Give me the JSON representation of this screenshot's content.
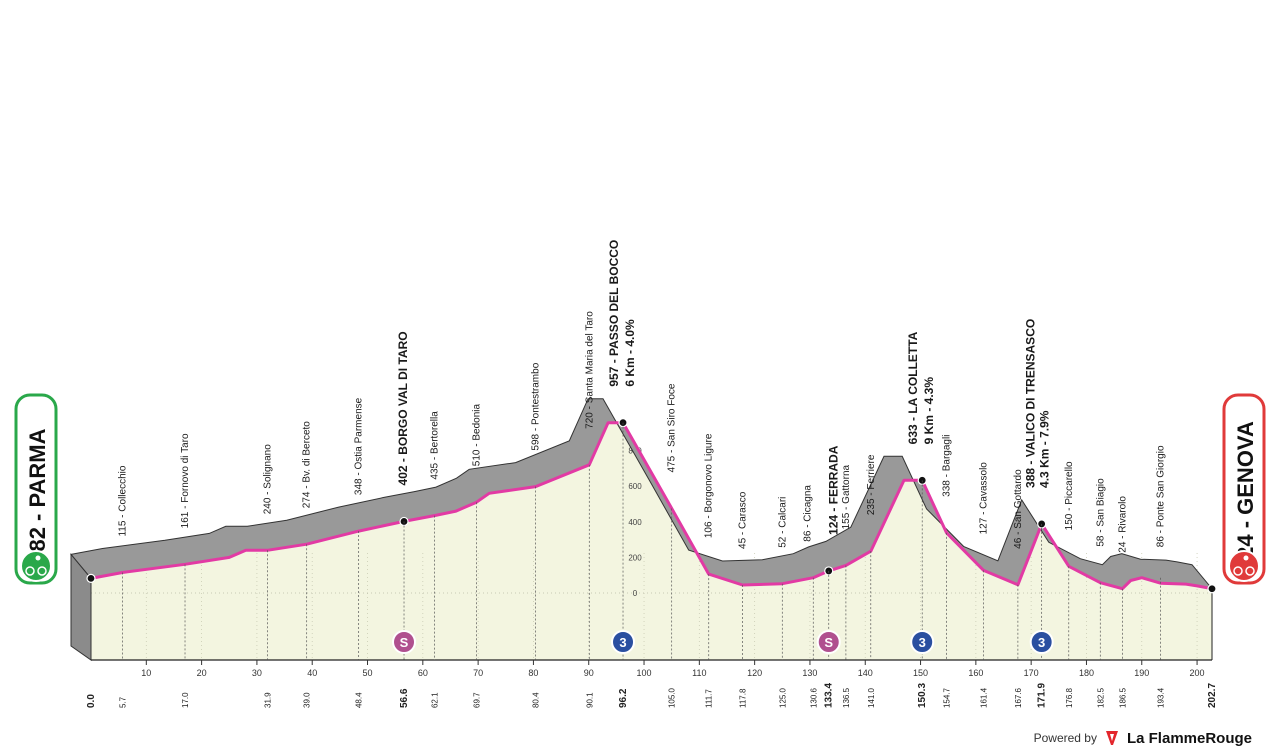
{
  "chart_data": {
    "type": "area",
    "title": "",
    "xlabel": "",
    "ylabel": "",
    "xlim": [
      0,
      202.7
    ],
    "ylim": [
      0,
      1000
    ],
    "y_ticks": [
      0,
      200,
      400,
      600,
      800
    ],
    "x_ticks": [
      10,
      20,
      30,
      40,
      50,
      60,
      70,
      80,
      90,
      100,
      110,
      120,
      130,
      140,
      150,
      160,
      170,
      180,
      190,
      200
    ],
    "series": [
      {
        "values_x": [
          0,
          5.7,
          17.0,
          25.0,
          28.0,
          31.9,
          39.0,
          48.4,
          56.6,
          62.1,
          66.0,
          69.7,
          72.0,
          80.4,
          90.1,
          93.5,
          96.2,
          105.0,
          111.7,
          117.8,
          125.0,
          130.6,
          133.4,
          136.5,
          141.0,
          147.0,
          150.3,
          154.7,
          161.4,
          167.6,
          171.9,
          176.8,
          182.5,
          186.5,
          188.0,
          190.0,
          193.4,
          198.0,
          200.0,
          202.7
        ],
        "values_y": [
          82,
          115,
          161,
          200,
          240,
          240,
          274,
          348,
          402,
          435,
          460,
          510,
          560,
          598,
          720,
          957,
          957,
          475,
          106,
          45,
          52,
          86,
          124,
          155,
          235,
          633,
          633,
          338,
          127,
          46,
          388,
          150,
          58,
          24,
          70,
          86,
          55,
          50,
          40,
          24
        ]
      }
    ],
    "points": [
      {
        "km": "0.0",
        "alt": 82,
        "name": "PARMA"
      },
      {
        "km": "5.7",
        "alt": 115,
        "name": "Collecchio"
      },
      {
        "km": "17.0",
        "alt": 161,
        "name": "Fornovo di Taro"
      },
      {
        "km": "31.9",
        "alt": 240,
        "name": "Solignano"
      },
      {
        "km": "39.0",
        "alt": 274,
        "name": "Bv. di Berceto"
      },
      {
        "km": "48.4",
        "alt": 348,
        "name": "Ostia Parmense"
      },
      {
        "km": "56.6",
        "alt": 402,
        "name": "BORGO VAL DI TARO"
      },
      {
        "km": "62.1",
        "alt": 435,
        "name": "Bertorella"
      },
      {
        "km": "69.7",
        "alt": 510,
        "name": "Bedonia"
      },
      {
        "km": "80.4",
        "alt": 598,
        "name": "Pontestrambo"
      },
      {
        "km": "90.1",
        "alt": 720,
        "name": "Santa Maria del Taro"
      },
      {
        "km": "96.2",
        "alt": 957,
        "name": "PASSO DEL BOCCO"
      },
      {
        "km": "105.0",
        "alt": 475,
        "name": "San Siro Foce"
      },
      {
        "km": "111.7",
        "alt": 106,
        "name": "Borgonovo Ligure"
      },
      {
        "km": "117.8",
        "alt": 45,
        "name": "Carasco"
      },
      {
        "km": "125.0",
        "alt": 52,
        "name": "Calcari"
      },
      {
        "km": "130.6",
        "alt": 86,
        "name": "Cicagna"
      },
      {
        "km": "133.4",
        "alt": 124,
        "name": "FERRADA"
      },
      {
        "km": "136.5",
        "alt": 155,
        "name": "Gattorna"
      },
      {
        "km": "141.0",
        "alt": 235,
        "name": "Ferriere"
      },
      {
        "km": "150.3",
        "alt": 633,
        "name": "LA COLLETTA"
      },
      {
        "km": "154.7",
        "alt": 338,
        "name": "Bargagli"
      },
      {
        "km": "161.4",
        "alt": 127,
        "name": "Cavassolo"
      },
      {
        "km": "167.6",
        "alt": 46,
        "name": "San Gottardo"
      },
      {
        "km": "171.9",
        "alt": 388,
        "name": "VALICO DI TRENSASCO"
      },
      {
        "km": "176.8",
        "alt": 150,
        "name": "Piccarello"
      },
      {
        "km": "182.5",
        "alt": 58,
        "name": "San Biagio"
      },
      {
        "km": "186.5",
        "alt": 24,
        "name": "Rivarolo"
      },
      {
        "km": "193.4",
        "alt": 86,
        "name": "Ponte San Giorgio"
      },
      {
        "km": "202.7",
        "alt": 24,
        "name": "GENOVA"
      }
    ],
    "label_texts": [
      "115 - Collecchio",
      "161 - Fornovo di Taro",
      "240 - Solignano",
      "274 - Bv. di Berceto",
      "348 - Ostia Parmense",
      "402 - BORGO VAL DI TARO",
      "435 - Bertorella",
      "510 - Bedonia",
      "598 - Pontestrambo",
      "720 - Santa Maria del Taro",
      "957 - PASSO DEL BOCCO",
      "6 Km - 4.0%",
      "475 - San Siro Foce",
      "106 - Borgonovo Ligure",
      "45 - Carasco",
      "52 - Calcari",
      "86 - Cicagna",
      "124 - FERRADA",
      "155 - Gattorna",
      "235 - Ferriere",
      "633 - LA COLLETTA",
      "9 Km - 4.3%",
      "338 - Bargagli",
      "127 - Cavassolo",
      "46 - San Gottardo",
      "388 - VALICO DI TRENSASCO",
      "4.3 Km - 7.9%",
      "150 - Piccarello",
      "58 - San Biagio",
      "24 - Rivarolo",
      "86 - Ponte San Giorgio"
    ],
    "start_label": "82 - PARMA",
    "finish_label": "24 - GENOVA",
    "markers": [
      {
        "km": 56.6,
        "type": "sprint",
        "label": "S",
        "color": "#b0508f"
      },
      {
        "km": 96.2,
        "type": "kom",
        "label": "3",
        "color": "#2a4fa0"
      },
      {
        "km": 133.4,
        "type": "sprint",
        "label": "S",
        "color": "#b0508f"
      },
      {
        "km": 150.3,
        "type": "kom",
        "label": "3",
        "color": "#2a4fa0"
      },
      {
        "km": 171.9,
        "type": "kom",
        "label": "3",
        "color": "#2a4fa0"
      }
    ],
    "colors": {
      "profile_fill": "#999999",
      "valley_fill": "#f3f5e0",
      "road_line": "#e23aa4",
      "start_badge": "#2aa84a",
      "finish_badge": "#e03a3a"
    }
  },
  "footer": {
    "powered_by": "Powered by",
    "brand": "La FlammeRouge"
  }
}
